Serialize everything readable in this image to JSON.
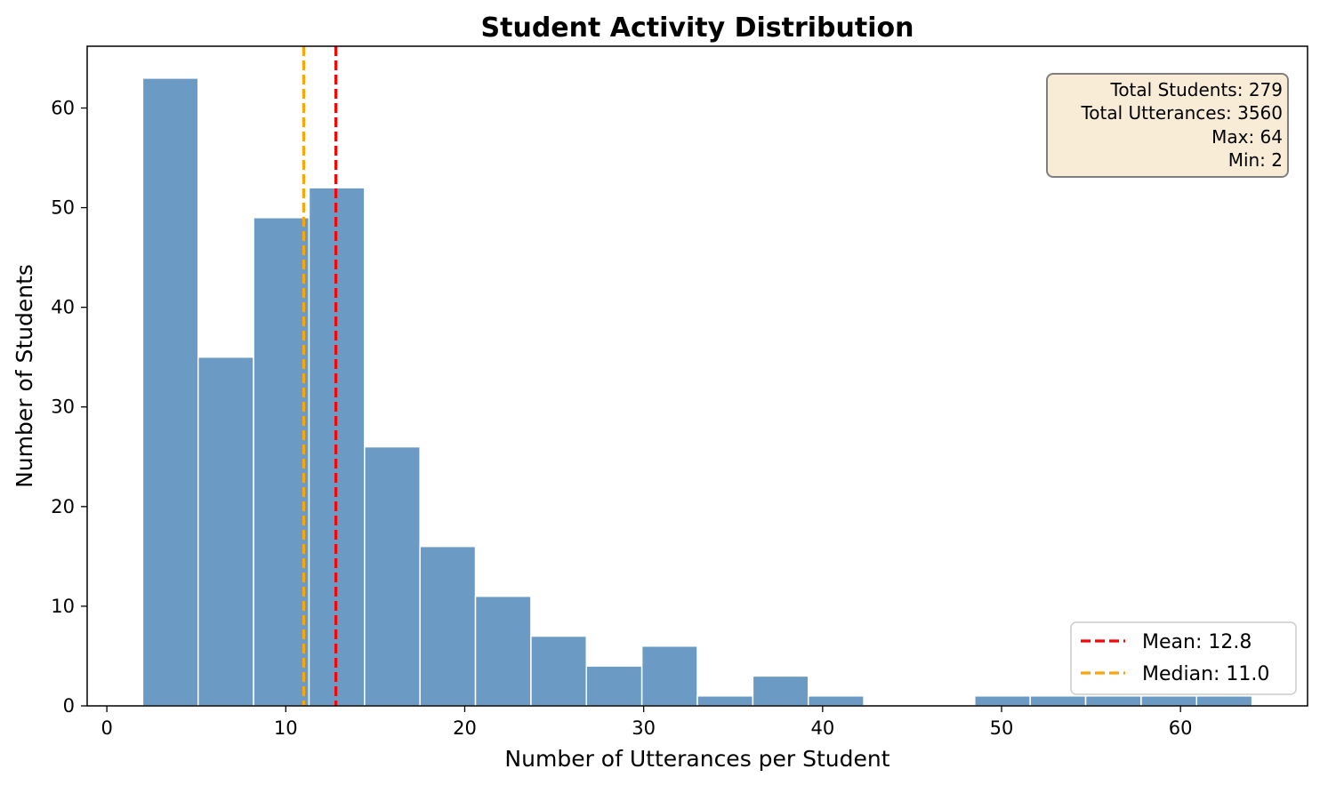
{
  "chart_data": {
    "type": "bar",
    "subtype": "histogram",
    "title": "Student Activity Distribution",
    "xlabel": "Number of Utterances per Student",
    "ylabel": "Number of Students",
    "xlim": [
      -1.1,
      67.1
    ],
    "ylim": [
      0,
      66.2
    ],
    "x_ticks": [
      0,
      10,
      20,
      30,
      40,
      50,
      60
    ],
    "y_ticks": [
      0,
      10,
      20,
      30,
      40,
      50,
      60
    ],
    "grid": false,
    "bar_color": "#6b9bc4",
    "bar_edge_color": "#ffffff",
    "bins": [
      {
        "x0": 2.0,
        "x1": 5.1,
        "count": 63
      },
      {
        "x0": 5.1,
        "x1": 8.2,
        "count": 35
      },
      {
        "x0": 8.2,
        "x1": 11.3,
        "count": 49
      },
      {
        "x0": 11.3,
        "x1": 14.4,
        "count": 52
      },
      {
        "x0": 14.4,
        "x1": 17.5,
        "count": 26
      },
      {
        "x0": 17.5,
        "x1": 20.6,
        "count": 16
      },
      {
        "x0": 20.6,
        "x1": 23.7,
        "count": 11
      },
      {
        "x0": 23.7,
        "x1": 26.8,
        "count": 7
      },
      {
        "x0": 26.8,
        "x1": 29.9,
        "count": 4
      },
      {
        "x0": 29.9,
        "x1": 33.0,
        "count": 6
      },
      {
        "x0": 33.0,
        "x1": 36.1,
        "count": 1
      },
      {
        "x0": 36.1,
        "x1": 39.2,
        "count": 3
      },
      {
        "x0": 39.2,
        "x1": 42.3,
        "count": 1
      },
      {
        "x0": 42.3,
        "x1": 45.4,
        "count": 0
      },
      {
        "x0": 45.4,
        "x1": 48.5,
        "count": 0
      },
      {
        "x0": 48.5,
        "x1": 51.6,
        "count": 1
      },
      {
        "x0": 51.6,
        "x1": 54.7,
        "count": 1
      },
      {
        "x0": 54.7,
        "x1": 57.8,
        "count": 1
      },
      {
        "x0": 57.8,
        "x1": 60.9,
        "count": 1
      },
      {
        "x0": 60.9,
        "x1": 64.0,
        "count": 1
      }
    ],
    "reference_lines": [
      {
        "name": "Mean: 12.8",
        "value": 12.8,
        "color": "#ff0000",
        "style": "dashed"
      },
      {
        "name": "Median: 11.0",
        "value": 11.0,
        "color": "#ffa500",
        "style": "dashed"
      }
    ],
    "legend_position": "bottom-right",
    "stats_box": {
      "position": "top-right",
      "lines": [
        "Total Students: 279",
        "Total Utterances: 3560",
        "Max: 64",
        "Min: 2"
      ],
      "background": "#f8ecd6",
      "border": "#7f7f7f"
    }
  }
}
